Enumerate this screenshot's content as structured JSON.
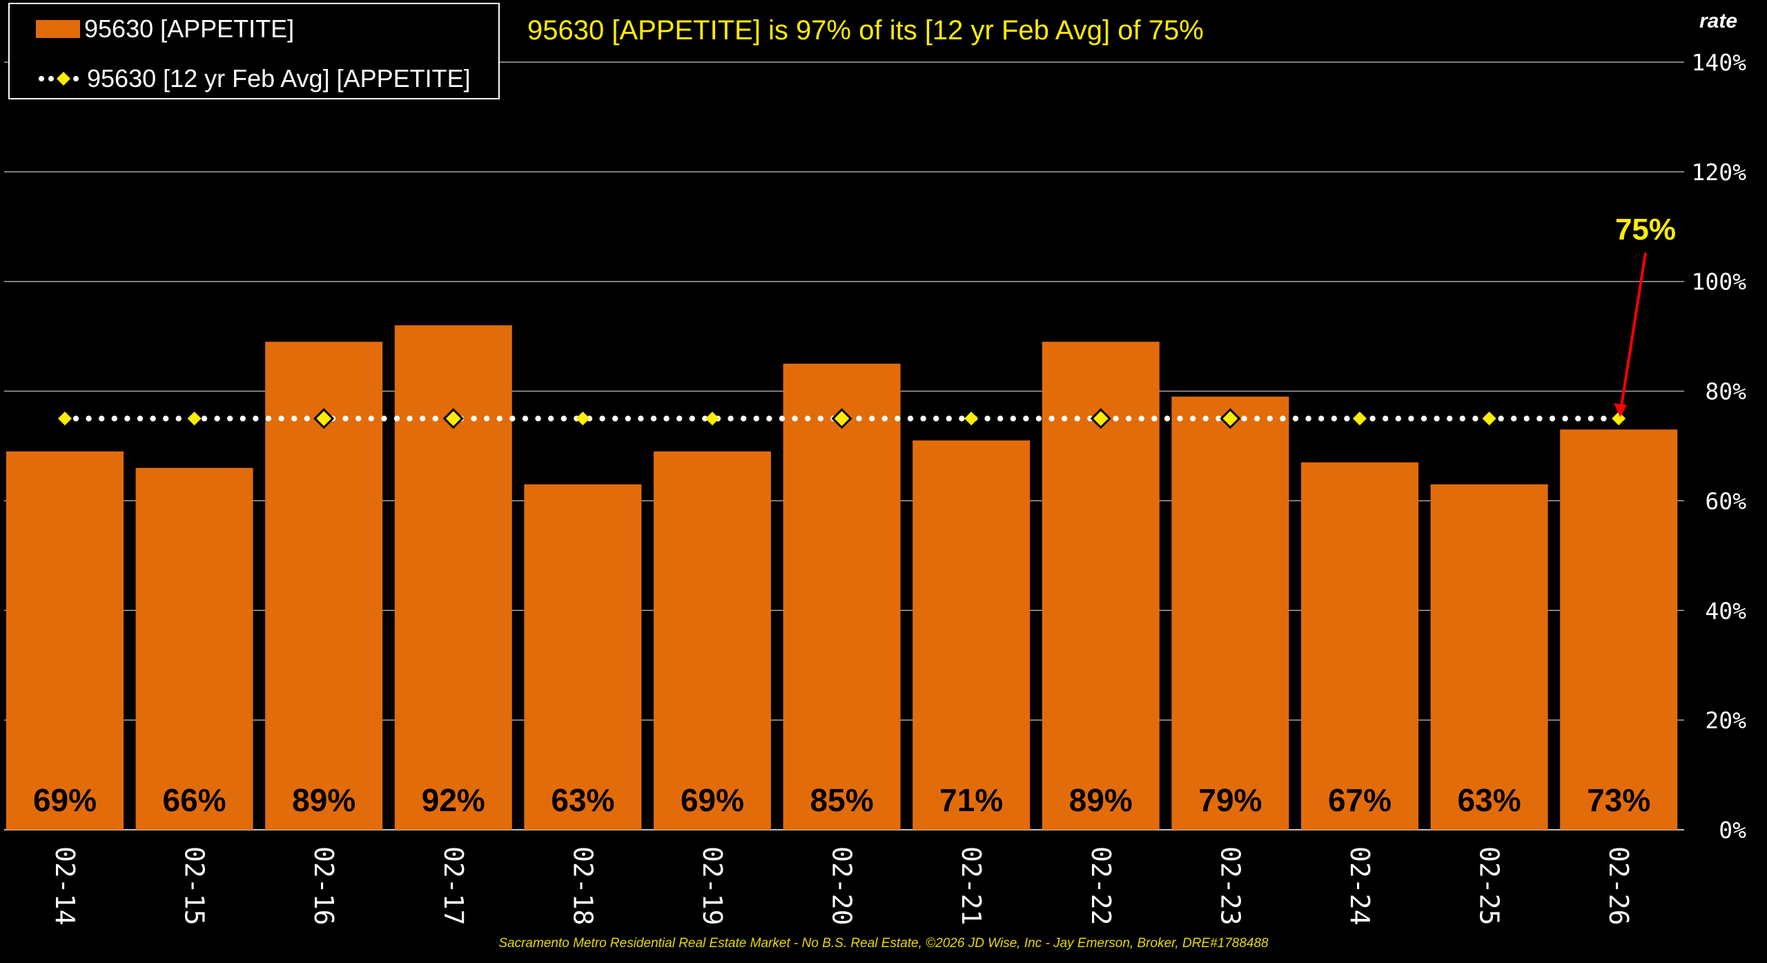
{
  "legend": {
    "bar_label": "95630 [APPETITE]",
    "line_label": "95630 [12 yr Feb Avg] [APPETITE]"
  },
  "summary_text": "95630 [APPETITE] is 97% of its [12 yr Feb Avg] of 75%",
  "axis_unit_label": "rate",
  "footer_text": "Sacramento Metro Residential Real Estate Market - No B.S. Real Estate, ©2026 JD Wise, Inc - Jay Emerson, Broker, DRE#1788488",
  "colors": {
    "bar": "#e36c0a",
    "avg_line": "#ffffff",
    "avg_marker": "#ffee00",
    "text_yellow": "#ffee00",
    "callout_arrow": "#ff0000"
  },
  "chart_data": {
    "type": "bar",
    "title": "95630 [APPETITE] is 97% of its [12 yr Feb Avg] of 75%",
    "xlabel": "",
    "ylabel": "rate",
    "ylim": [
      0,
      140
    ],
    "yticks": [
      0,
      20,
      40,
      60,
      80,
      100,
      120,
      140
    ],
    "ytick_labels": [
      "0%",
      "20%",
      "40%",
      "60%",
      "80%",
      "100%",
      "120%",
      "140%"
    ],
    "grid": true,
    "legend_position": "top-left",
    "categories": [
      "02-14",
      "02-15",
      "02-16",
      "02-17",
      "02-18",
      "02-19",
      "02-20",
      "02-21",
      "02-22",
      "02-23",
      "02-24",
      "02-25",
      "02-26"
    ],
    "series": [
      {
        "name": "95630 [APPETITE]",
        "kind": "bar",
        "values": [
          69,
          66,
          89,
          92,
          63,
          69,
          85,
          71,
          89,
          79,
          67,
          63,
          73
        ],
        "data_labels": [
          "69%",
          "66%",
          "89%",
          "92%",
          "63%",
          "69%",
          "85%",
          "71%",
          "89%",
          "79%",
          "67%",
          "63%",
          "73%"
        ]
      },
      {
        "name": "95630 [12 yr Feb Avg] [APPETITE]",
        "kind": "line",
        "style": "dotted",
        "values": [
          75,
          75,
          75,
          75,
          75,
          75,
          75,
          75,
          75,
          75,
          75,
          75,
          75
        ]
      }
    ],
    "annotation": {
      "text": "75%",
      "target_category": "02-26",
      "target_value": 75
    }
  }
}
